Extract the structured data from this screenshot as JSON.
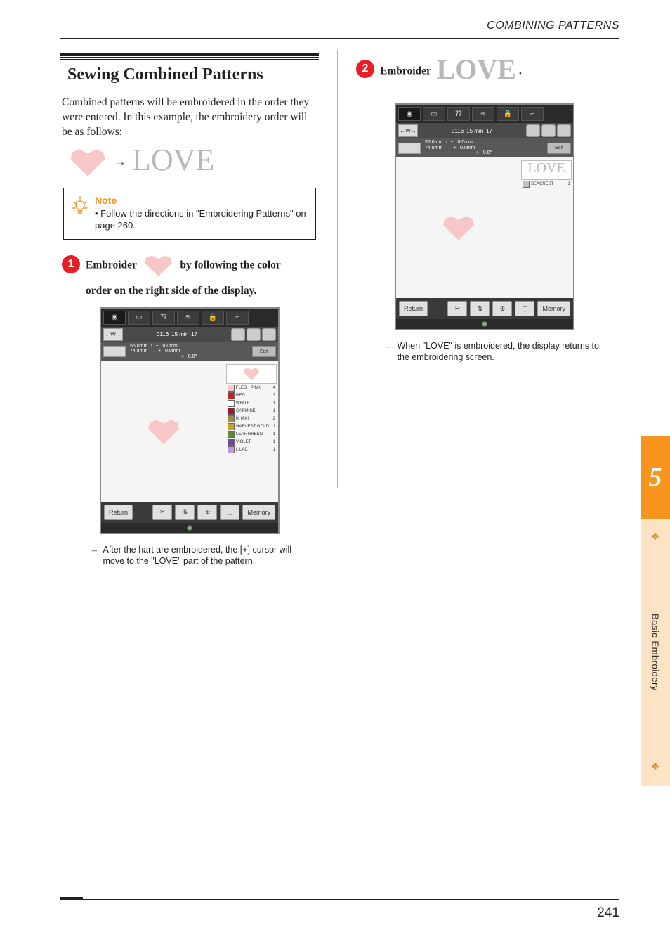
{
  "header": {
    "breadcrumb": "COMBINING PATTERNS"
  },
  "section": {
    "title": "Sewing Combined Patterns",
    "intro": "Combined patterns will be embroidered in the order they were entered. In this example, the embroidery order will be as follows:"
  },
  "note": {
    "title": "Note",
    "body": "Follow the directions in \"Embroidering Patterns\" on page 260."
  },
  "step1": {
    "num": "1",
    "lead": "Embroider",
    "tail": "by following the color",
    "line2": "order on the right side of the display."
  },
  "device1": {
    "row2": {
      "left": "←W→",
      "count": "0116",
      "time": "15 min",
      "frame": "17"
    },
    "row3": {
      "h": "56.0mm",
      "w": "74.8mm",
      "dx": "0.0mm",
      "dy": "0.0mm",
      "rot": "0.0°",
      "edit": "Edit"
    },
    "colors": [
      {
        "name": "FLESH PINK",
        "min": "4",
        "hex": "#f7c6c6"
      },
      {
        "name": "RED",
        "min": "3",
        "hex": "#cc1f1f"
      },
      {
        "name": "WHITE",
        "min": "1",
        "hex": "#ffffff"
      },
      {
        "name": "CARMINE",
        "min": "1",
        "hex": "#9a1b2f"
      },
      {
        "name": "KHAKI",
        "min": "2",
        "hex": "#9a8b4f"
      },
      {
        "name": "HARVEST GOLD",
        "min": "1",
        "hex": "#c9a227"
      },
      {
        "name": "LEAF GREEN",
        "min": "1",
        "hex": "#5a8a3a"
      },
      {
        "name": "VIOLET",
        "min": "1",
        "hex": "#6a4a9a"
      },
      {
        "name": "LILAC",
        "min": "1",
        "hex": "#b89ad6"
      }
    ],
    "bottom": {
      "return": "Return",
      "memory": "Memory"
    }
  },
  "result1": "After the hart are embroidered, the [+] cursor will move to the \"LOVE\" part of the pattern.",
  "step2": {
    "num": "2",
    "lead": "Embroider",
    "tail": "."
  },
  "device2": {
    "row2": {
      "left": "←W→",
      "count": "0116",
      "time": "15 min",
      "frame": "17"
    },
    "row3": {
      "h": "56.0mm",
      "w": "74.8mm",
      "dx": "0.0mm",
      "dy": "0.0mm",
      "rot": "0.0°",
      "edit": "Edit"
    },
    "colors": [
      {
        "name": "SEACREST",
        "min": "1",
        "hex": "#b8c8b8"
      }
    ],
    "bottom": {
      "return": "Return",
      "memory": "Memory"
    }
  },
  "result2": "When \"LOVE\" is embroidered, the display returns to the embroidering screen.",
  "sidebar": {
    "chapter": "5",
    "label": "Basic Embroidery"
  },
  "footer": {
    "page": "241"
  }
}
